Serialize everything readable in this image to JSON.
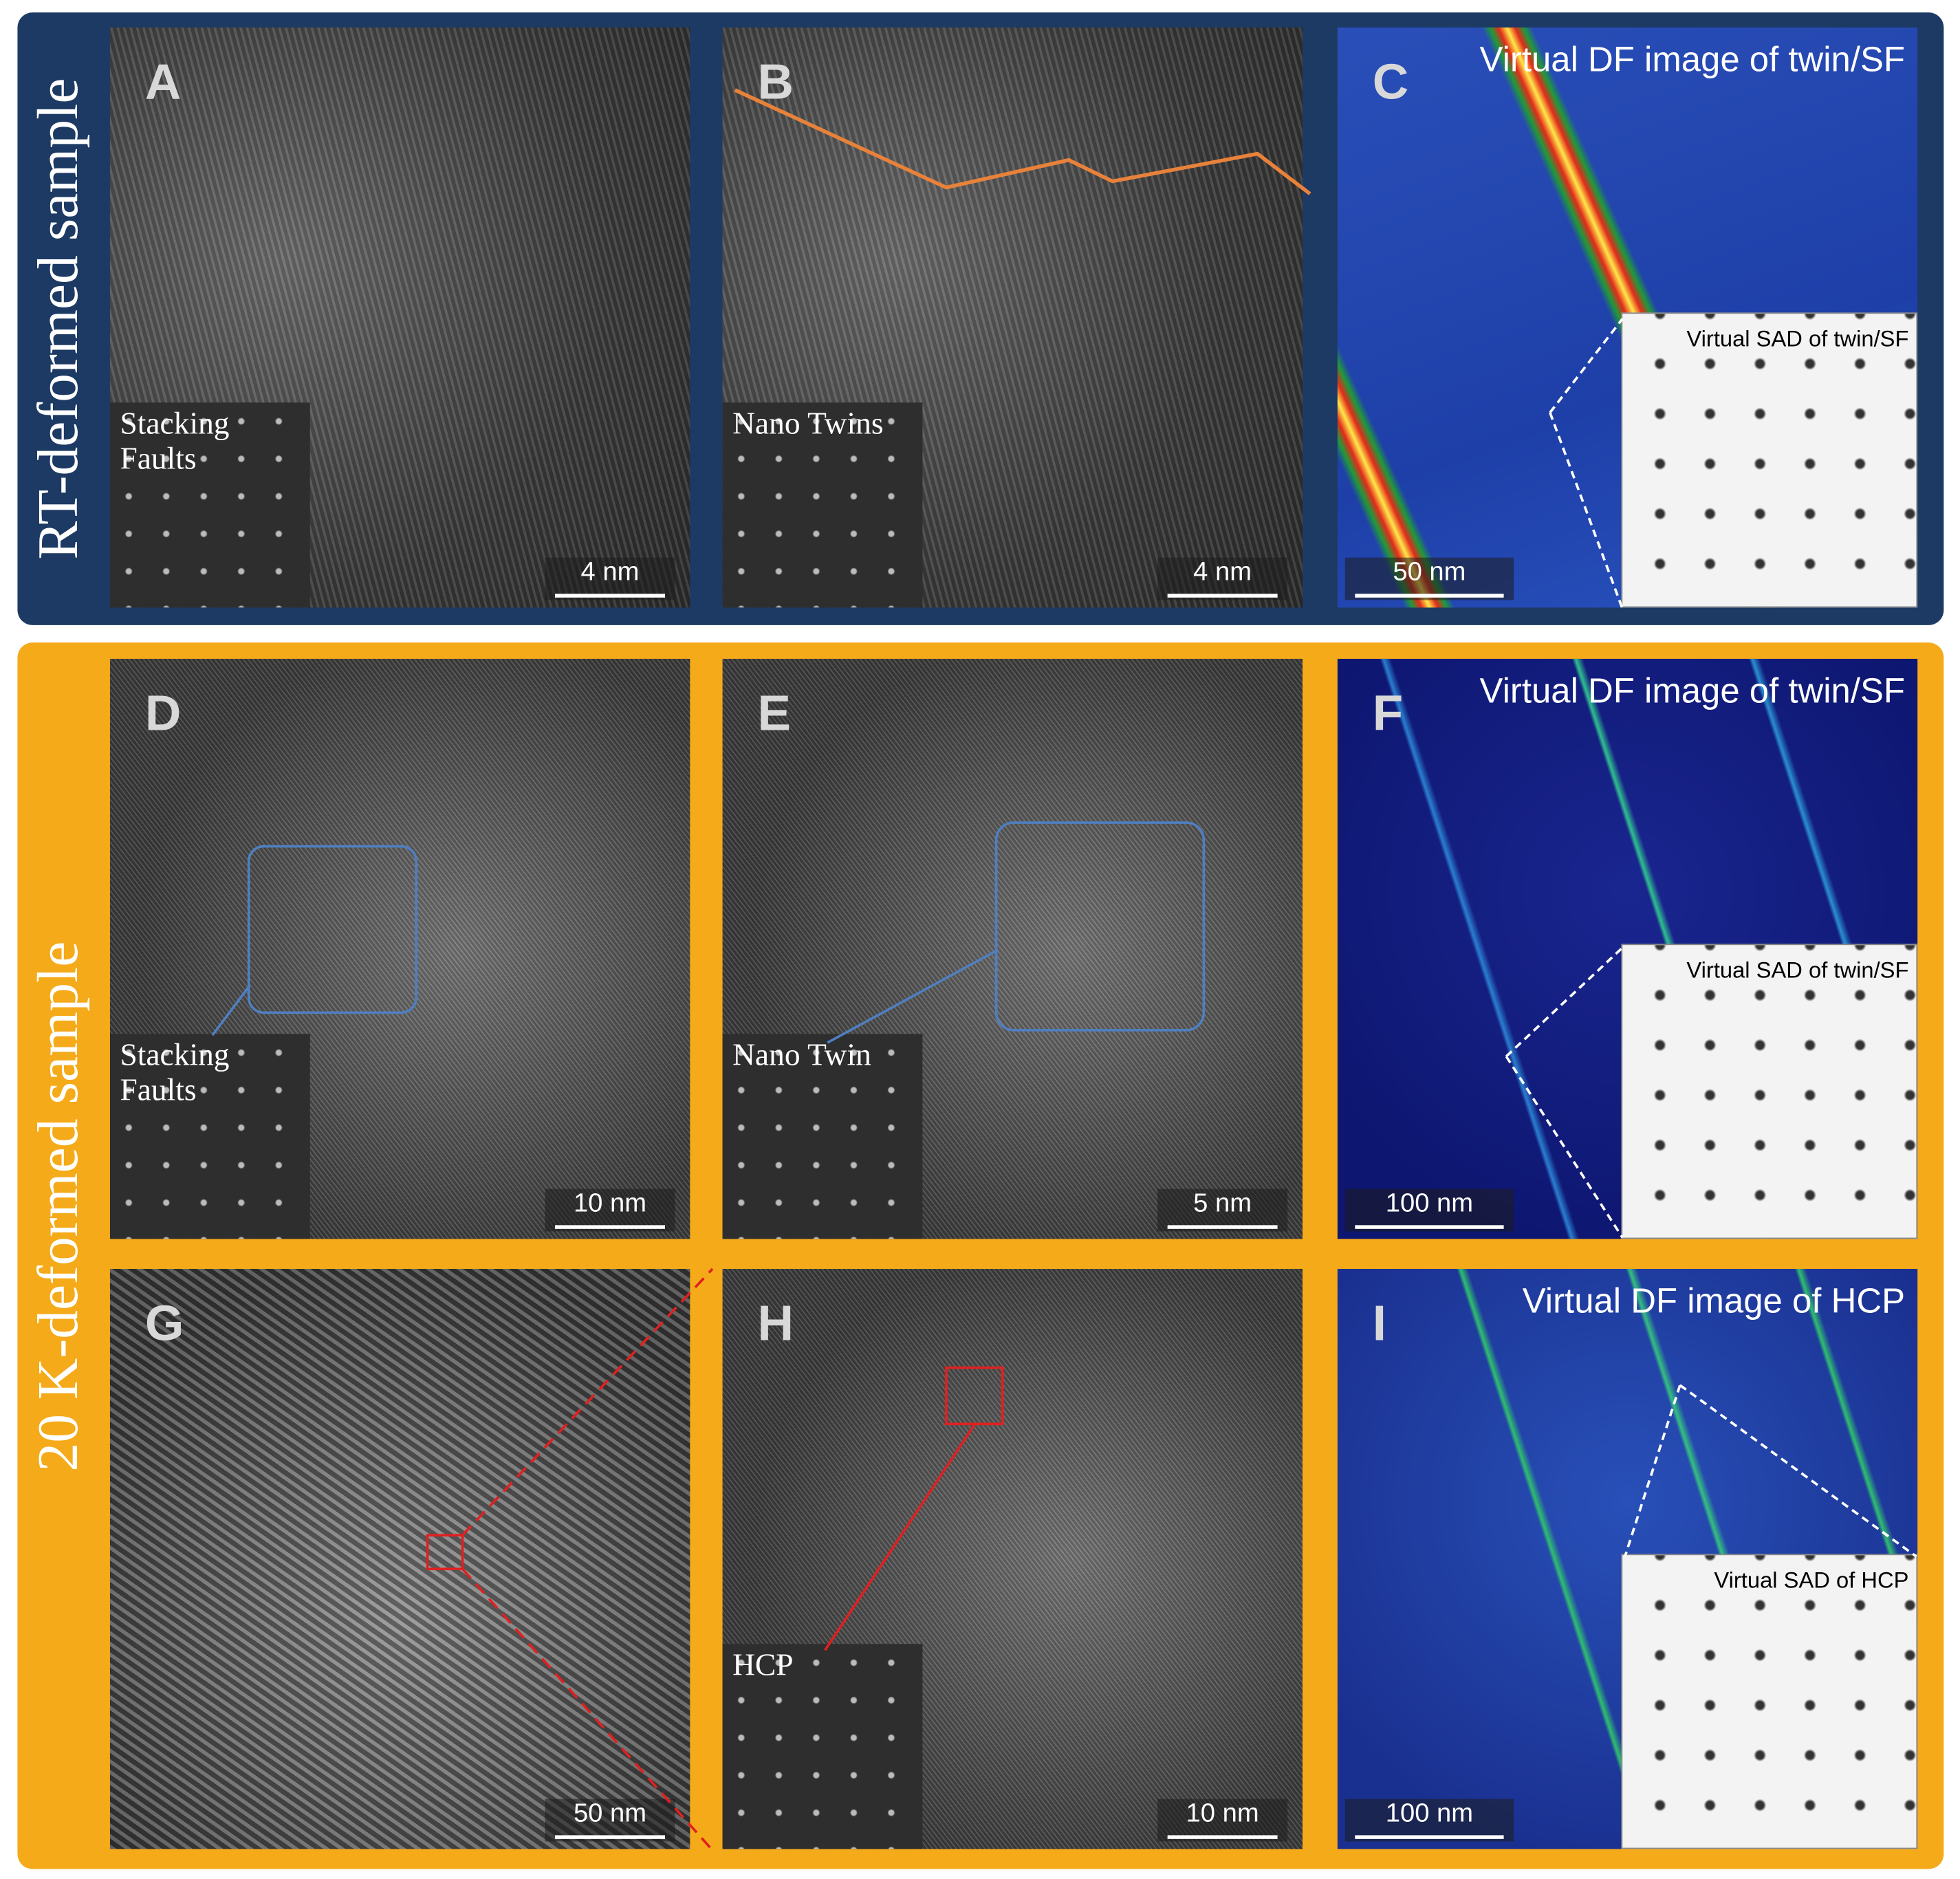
{
  "sections": [
    {
      "title": "RT-deformed sample",
      "panels": [
        {
          "letter": "A",
          "inset_label": "Stacking Faults",
          "scale_bar": "4 nm"
        },
        {
          "letter": "B",
          "inset_label": "Nano Twins",
          "scale_bar": "4 nm"
        },
        {
          "letter": "C",
          "title": "Virtual DF image of twin/SF",
          "inset_label": "Virtual SAD of twin/SF",
          "scale_bar": "50 nm"
        }
      ]
    },
    {
      "title": "20 K-deformed sample",
      "panels": [
        {
          "letter": "D",
          "inset_label": "Stacking Faults",
          "scale_bar": "10 nm"
        },
        {
          "letter": "E",
          "inset_label": "Nano Twin",
          "scale_bar": "5 nm"
        },
        {
          "letter": "F",
          "title": "Virtual DF image of twin/SF",
          "inset_label": "Virtual SAD of twin/SF",
          "scale_bar": "100 nm"
        },
        {
          "letter": "G",
          "scale_bar": "50 nm"
        },
        {
          "letter": "H",
          "inset_label": "HCP",
          "scale_bar": "10 nm"
        },
        {
          "letter": "I",
          "title": "Virtual DF image of HCP",
          "inset_label": "Virtual SAD of HCP",
          "scale_bar": "100 nm"
        }
      ]
    }
  ]
}
